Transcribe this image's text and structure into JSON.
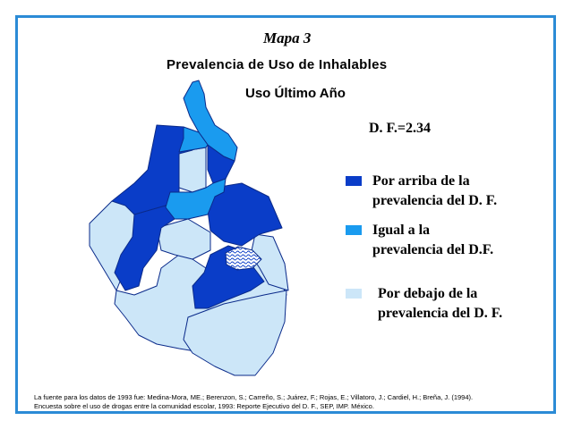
{
  "header": {
    "map_number": "Mapa 3",
    "title": "Prevalencia de Uso de Inhalables",
    "subtitle": "Uso Último Año"
  },
  "reference": {
    "df_prevalence": "D. F.=2.34"
  },
  "legend": {
    "items": [
      {
        "label_line1": "Por arriba de la",
        "label_line2": "prevalencia del D. F.",
        "color": "#0a3dc8"
      },
      {
        "label_line1": "Igual a la",
        "label_line2": "prevalencia del D.F.",
        "color": "#1a9bef"
      },
      {
        "label_line1": "Por debajo de la",
        "label_line2": "prevalencia del D. F.",
        "color": "#cce6f8"
      }
    ]
  },
  "colors": {
    "frame": "#2b8bd6",
    "above": "#0a3dc8",
    "equal": "#1a9bef",
    "below": "#cce6f8"
  },
  "source": {
    "line1": "La fuente para los datos de 1993 fue: Medina-Mora, ME.; Berenzon, S.; Carreño, S.; Juárez, F.; Rojas, E.; Villatoro, J.; Cardiel, H.; Breña, J. (1994).",
    "line2": "Encuesta sobre el uso de drogas entre la comunidad escolar, 1993: Reporte Ejecutivo del D. F., SEP, IMP. México."
  }
}
